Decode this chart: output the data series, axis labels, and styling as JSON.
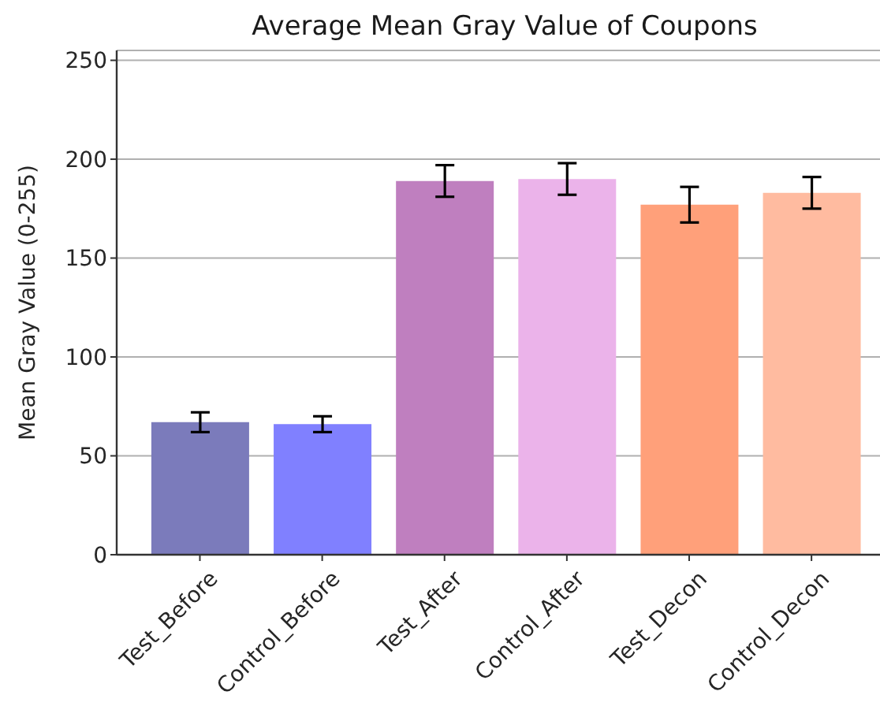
{
  "chart_data": {
    "type": "bar",
    "title": "Average Mean Gray Value of Coupons",
    "ylabel": "Mean Gray Value (0-255)",
    "categories": [
      "Test_Before",
      "Control_Before",
      "Test_After",
      "Control_After",
      "Test_Decon",
      "Control_Decon"
    ],
    "values": [
      67,
      66,
      189,
      190,
      177,
      183
    ],
    "errors": [
      5,
      4,
      8,
      8,
      9,
      8
    ],
    "colors": [
      "#7b7bbb",
      "#8080ff",
      "#bf7fbf",
      "#ebb3ea",
      "#ffa07a",
      "#ffbba0"
    ],
    "ylim": [
      0,
      255
    ],
    "yticks": [
      0,
      50,
      100,
      150,
      200,
      250
    ],
    "grid": "y"
  }
}
